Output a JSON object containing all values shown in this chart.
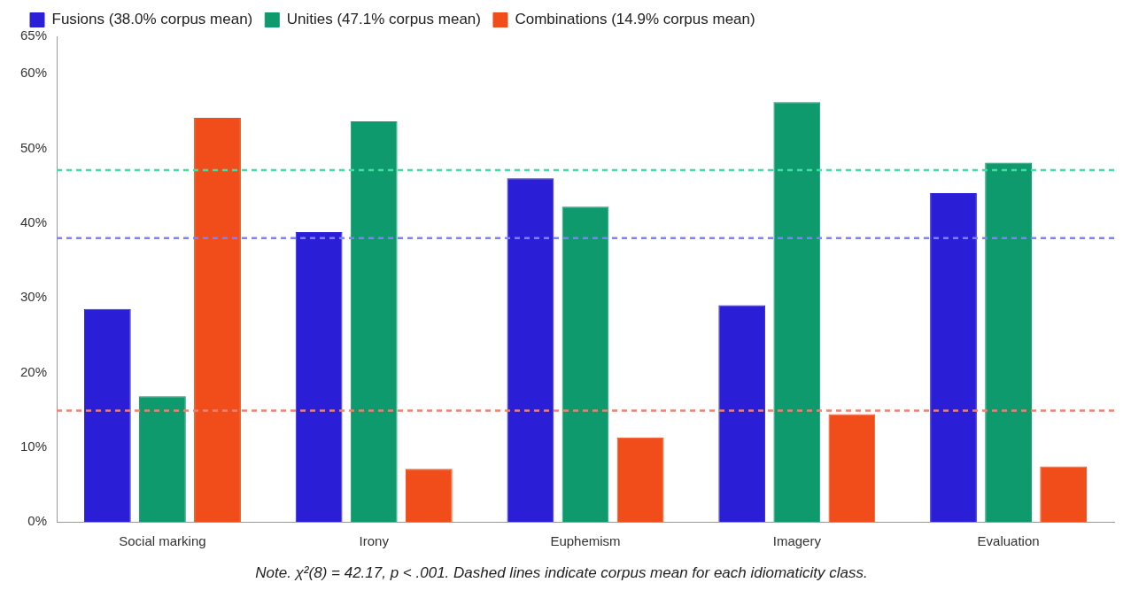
{
  "chart_data": {
    "type": "bar",
    "categories": [
      "Social marking",
      "Irony",
      "Euphemism",
      "Imagery",
      "Evaluation"
    ],
    "series": [
      {
        "name": "Fusions (38.0% corpus mean)",
        "color": "#2a1fd6",
        "values": [
          28.5,
          38.8,
          46.0,
          29.0,
          44.0
        ]
      },
      {
        "name": "Unities (47.1% corpus mean)",
        "color": "#0f9a6e",
        "values": [
          16.8,
          53.6,
          42.2,
          56.2,
          48.1
        ]
      },
      {
        "name": "Combinations (14.9% corpus mean)",
        "color": "#f04d1a",
        "values": [
          54.1,
          7.1,
          11.3,
          14.4,
          7.4
        ]
      }
    ],
    "ylim": [
      0,
      65
    ],
    "yticks": [
      {
        "value": 0,
        "label": "0%"
      },
      {
        "value": 10,
        "label": "10%"
      },
      {
        "value": 20,
        "label": "20%"
      },
      {
        "value": 30,
        "label": "30%"
      },
      {
        "value": 40,
        "label": "40%"
      },
      {
        "value": 50,
        "label": "50%"
      },
      {
        "value": 60,
        "label": "60%"
      },
      {
        "value": 65,
        "label": "65%"
      }
    ],
    "ref_lines": [
      {
        "axis": "y",
        "value": 38.0,
        "color": "#8080ff",
        "line_style": "dashed"
      },
      {
        "axis": "y",
        "value": 47.1,
        "color": "#40e0a0",
        "line_style": "dashed"
      },
      {
        "axis": "y",
        "value": 14.9,
        "color": "#f08070",
        "line_style": "dashed"
      }
    ],
    "legend": "top left",
    "grid": false,
    "annotations": [
      "Note. χ²(8) = 42.17, p < .001. Dashed lines indicate corpus mean for each idiomaticity class."
    ]
  }
}
